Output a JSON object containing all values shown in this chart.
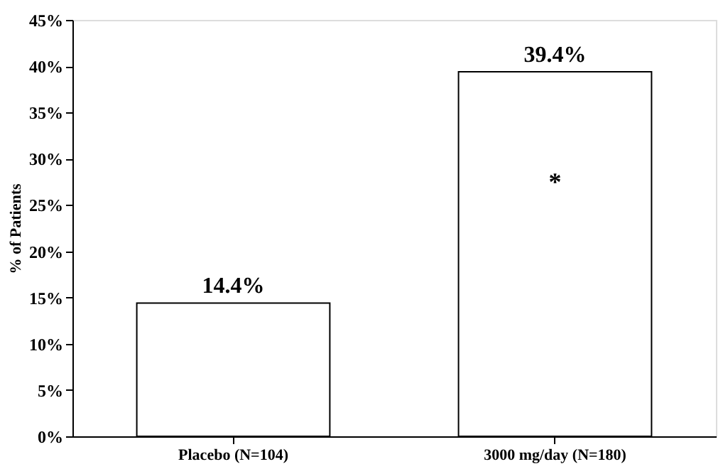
{
  "chart_data": {
    "type": "bar",
    "ylabel": "% of Patients",
    "categories": [
      "Placebo (N=104)",
      "3000 mg/day (N=180)"
    ],
    "values": [
      14.4,
      39.4
    ],
    "color": "#ffffff",
    "value_labels": [
      "14.4%",
      "39.4%"
    ],
    "annotations": [
      "*"
    ],
    "ylim": [
      0,
      45
    ],
    "yticks": [
      {
        "value": 0,
        "label": "0%"
      },
      {
        "value": 5,
        "label": "5%"
      },
      {
        "value": 10,
        "label": "10%"
      },
      {
        "value": 15,
        "label": "15%"
      },
      {
        "value": 20,
        "label": "20%"
      },
      {
        "value": 25,
        "label": "25%"
      },
      {
        "value": 30,
        "label": "30%"
      },
      {
        "value": 35,
        "label": "35%"
      },
      {
        "value": 40,
        "label": "40%"
      },
      {
        "value": 45,
        "label": "45%"
      }
    ],
    "grid": false
  }
}
